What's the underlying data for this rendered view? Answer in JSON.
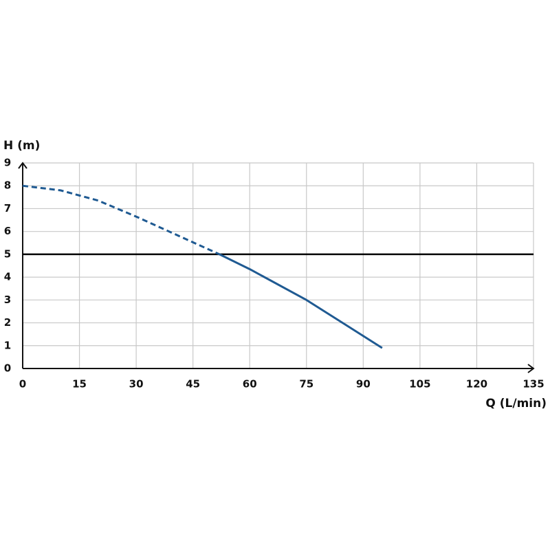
{
  "chart_data": {
    "type": "line",
    "x_label": "Q (L/min)",
    "y_label": "H (m)",
    "xlim": [
      0,
      135
    ],
    "ylim": [
      0,
      9
    ],
    "xticks": [
      0,
      15,
      30,
      45,
      60,
      75,
      90,
      105,
      120,
      135
    ],
    "yticks": [
      0,
      1,
      2,
      3,
      4,
      5,
      6,
      7,
      8,
      9
    ],
    "grid": true,
    "reference_line": {
      "y": 5,
      "color": "#000000"
    },
    "series": [
      {
        "color": "#1f5a92",
        "style": "dashed",
        "x": [
          0,
          10,
          20,
          30,
          40,
          52
        ],
        "values": [
          8,
          7.8,
          7.35,
          6.65,
          5.9,
          5
        ]
      },
      {
        "color": "#1f5a92",
        "style": "solid",
        "x": [
          52,
          60,
          75,
          95
        ],
        "values": [
          5,
          4.35,
          3.0,
          0.9
        ]
      }
    ]
  }
}
